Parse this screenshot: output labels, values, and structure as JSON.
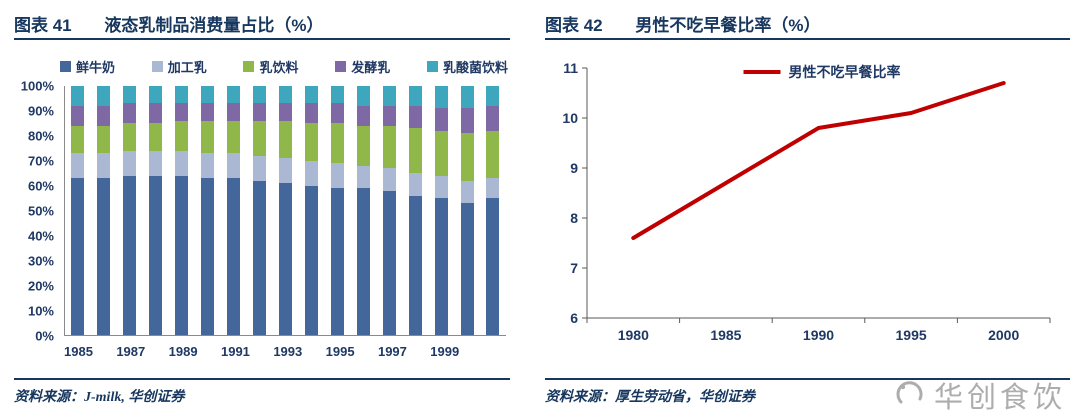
{
  "left_panel": {
    "caption_label": "图表 41",
    "caption_title": "液态乳制品消费量占比（%）",
    "source": "资料来源：J-milk, 华创证券",
    "chart_data": {
      "type": "bar",
      "subtype": "stacked-100",
      "title": "液态乳制品消费量占比（%）",
      "categories": [
        1985,
        1986,
        1987,
        1988,
        1989,
        1990,
        1991,
        1992,
        1993,
        1994,
        1995,
        1996,
        1997,
        1998,
        1999,
        2000,
        2001
      ],
      "x_label_step": 2,
      "x_tick_labels": [
        "1985",
        "1987",
        "1989",
        "1991",
        "1993",
        "1995",
        "1997",
        "1999"
      ],
      "ylim": [
        0,
        100
      ],
      "y_ticks": [
        "0%",
        "10%",
        "20%",
        "30%",
        "40%",
        "50%",
        "60%",
        "70%",
        "80%",
        "90%",
        "100%"
      ],
      "grid": false,
      "legend_position": "top",
      "series": [
        {
          "name": "鲜牛奶",
          "color": "#44679B",
          "values": [
            63,
            63,
            64,
            64,
            64,
            63,
            63,
            62,
            61,
            60,
            59,
            59,
            58,
            56,
            55,
            53,
            55
          ]
        },
        {
          "name": "加工乳",
          "color": "#AAB8D4",
          "values": [
            10,
            10,
            10,
            10,
            10,
            10,
            10,
            10,
            10,
            10,
            10,
            9,
            9,
            9,
            9,
            9,
            8
          ]
        },
        {
          "name": "乳饮料",
          "color": "#8FB74A",
          "values": [
            11,
            11,
            11,
            11,
            12,
            13,
            13,
            14,
            15,
            15,
            16,
            16,
            17,
            18,
            18,
            19,
            19
          ]
        },
        {
          "name": "发酵乳",
          "color": "#7E69A5",
          "values": [
            8,
            8,
            8,
            8,
            7,
            7,
            7,
            7,
            7,
            8,
            8,
            8,
            8,
            9,
            9,
            10,
            10
          ]
        },
        {
          "name": "乳酸菌饮料",
          "color": "#3EA7BE",
          "values": [
            8,
            8,
            7,
            7,
            7,
            7,
            7,
            7,
            7,
            7,
            7,
            8,
            8,
            8,
            9,
            9,
            8
          ]
        }
      ]
    }
  },
  "right_panel": {
    "caption_label": "图表 42",
    "caption_title": "男性不吃早餐比率（%）",
    "source": "资料来源：厚生劳动省，华创证券",
    "chart_data": {
      "type": "line",
      "title": "男性不吃早餐比率（%）",
      "legend_label": "男性不吃早餐比率",
      "line_color": "#C00000",
      "categories": [
        "1980",
        "1985",
        "1990",
        "1995",
        "2000"
      ],
      "values": [
        7.6,
        8.7,
        9.8,
        10.1,
        10.7
      ],
      "ylim": [
        6,
        11
      ],
      "y_ticks": [
        6,
        7,
        8,
        9,
        10,
        11
      ],
      "grid": false,
      "legend_position": "top-center"
    }
  },
  "watermark": {
    "text": "华创食饮",
    "color": "#ADADAD"
  },
  "colors": {
    "heading_navy": "#17375E",
    "axis_text_navy": "#1F3864",
    "line_red": "#C00000"
  }
}
